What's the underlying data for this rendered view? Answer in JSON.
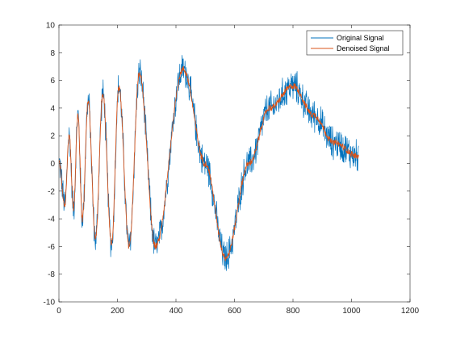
{
  "chart_data": {
    "type": "line",
    "title": "",
    "xlabel": "",
    "ylabel": "",
    "xlim": [
      0,
      1200
    ],
    "ylim": [
      -10,
      10
    ],
    "xticks": [
      0,
      200,
      400,
      600,
      800,
      1000,
      1200
    ],
    "yticks": [
      -10,
      -8,
      -6,
      -4,
      -2,
      0,
      2,
      4,
      6,
      8,
      10
    ],
    "xtick_labels": [
      "0",
      "200",
      "400",
      "600",
      "800",
      "1000",
      "1200"
    ],
    "ytick_labels": [
      "-10",
      "-8",
      "-6",
      "-4",
      "-2",
      "0",
      "2",
      "4",
      "6",
      "8",
      "10"
    ],
    "grid": false,
    "legend_position": "top-right",
    "x": [
      1,
      1024
    ],
    "series": [
      {
        "name": "Original Signal",
        "color": "#0072BD",
        "noise_amplitude": 1.0,
        "points": [
          [
            1,
            0
          ],
          [
            20,
            -3.0
          ],
          [
            35,
            2.0
          ],
          [
            50,
            -3.2
          ],
          [
            65,
            3.5
          ],
          [
            80,
            -4.0
          ],
          [
            100,
            4.5
          ],
          [
            125,
            -5.5
          ],
          [
            150,
            5.0
          ],
          [
            180,
            -5.8
          ],
          [
            205,
            5.5
          ],
          [
            240,
            -6.0
          ],
          [
            275,
            6.5
          ],
          [
            330,
            -6.0
          ],
          [
            425,
            6.8
          ],
          [
            500,
            0.0
          ],
          [
            570,
            -6.8
          ],
          [
            650,
            0.0
          ],
          [
            720,
            4.0
          ],
          [
            800,
            5.6
          ],
          [
            870,
            3.5
          ],
          [
            940,
            1.5
          ],
          [
            1024,
            0.5
          ]
        ]
      },
      {
        "name": "Denoised Signal",
        "color": "#D95319",
        "noise_amplitude": 0.2,
        "points": [
          [
            1,
            0
          ],
          [
            20,
            -3.0
          ],
          [
            35,
            2.0
          ],
          [
            50,
            -3.2
          ],
          [
            65,
            3.5
          ],
          [
            80,
            -4.0
          ],
          [
            100,
            4.5
          ],
          [
            125,
            -5.5
          ],
          [
            150,
            5.0
          ],
          [
            180,
            -5.8
          ],
          [
            205,
            5.5
          ],
          [
            240,
            -6.0
          ],
          [
            275,
            6.5
          ],
          [
            330,
            -6.0
          ],
          [
            425,
            6.8
          ],
          [
            500,
            0.0
          ],
          [
            570,
            -6.8
          ],
          [
            650,
            0.0
          ],
          [
            720,
            4.0
          ],
          [
            800,
            5.6
          ],
          [
            870,
            3.5
          ],
          [
            940,
            1.5
          ],
          [
            1024,
            0.5
          ]
        ]
      }
    ]
  }
}
